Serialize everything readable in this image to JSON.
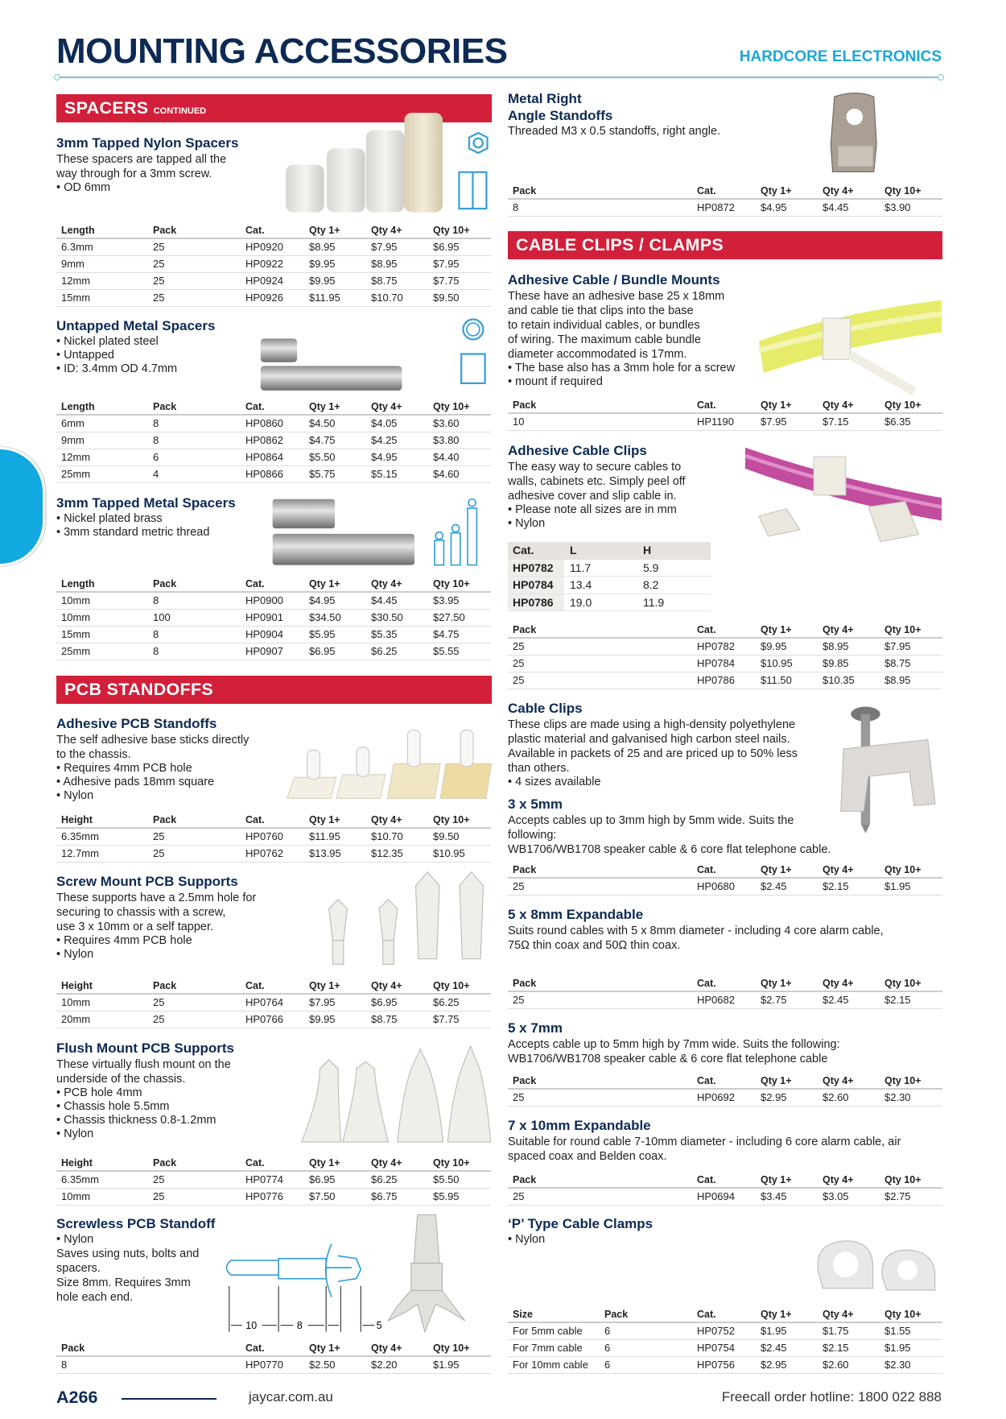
{
  "header": {
    "title": "MOUNTING ACCESSORIES",
    "brand": "HARDCORE ELECTRONICS"
  },
  "banners": {
    "spacers": "SPACERS",
    "spacers_sub": "CONTINUED",
    "pcb": "PCB STANDOFFS",
    "cable": "CABLE CLIPS / CLAMPS"
  },
  "colors": {
    "navy": "#0d2a55",
    "red_banner": "#d21f3a",
    "cyan": "#1ba8d8"
  },
  "left_sections": [
    {
      "id": "nylon",
      "heading": [
        "3mm Tapped Nylon Spacers"
      ],
      "desc": [
        "These spacers are tapped all the",
        "way through for a 3mm screw."
      ],
      "bullets": [
        "OD 6mm"
      ],
      "table": {
        "headers": [
          "Length",
          "Pack",
          "Cat.",
          "Qty 1+",
          "Qty 4+",
          "Qty 10+"
        ],
        "rows": [
          [
            "6.3mm",
            "25",
            "HP0920",
            "$8.95",
            "$7.95",
            "$6.95"
          ],
          [
            "9mm",
            "25",
            "HP0922",
            "$9.95",
            "$8.95",
            "$7.95"
          ],
          [
            "12mm",
            "25",
            "HP0924",
            "$9.95",
            "$8.75",
            "$7.75"
          ],
          [
            "15mm",
            "25",
            "HP0926",
            "$11.95",
            "$10.70",
            "$9.50"
          ]
        ]
      }
    },
    {
      "id": "untapped",
      "heading": [
        "Untapped Metal Spacers"
      ],
      "desc": [],
      "bullets": [
        "Nickel plated steel",
        "Untapped",
        "ID: 3.4mm OD 4.7mm"
      ],
      "table": {
        "headers": [
          "Length",
          "Pack",
          "Cat.",
          "Qty 1+",
          "Qty 4+",
          "Qty 10+"
        ],
        "rows": [
          [
            "6mm",
            "8",
            "HP0860",
            "$4.50",
            "$4.05",
            "$3.60"
          ],
          [
            "9mm",
            "8",
            "HP0862",
            "$4.75",
            "$4.25",
            "$3.80"
          ],
          [
            "12mm",
            "6",
            "HP0864",
            "$5.50",
            "$4.95",
            "$4.40"
          ],
          [
            "25mm",
            "4",
            "HP0866",
            "$5.75",
            "$5.15",
            "$4.60"
          ]
        ]
      }
    },
    {
      "id": "tapped_metal",
      "heading": [
        "3mm Tapped Metal Spacers"
      ],
      "desc": [],
      "bullets": [
        "Nickel plated brass",
        "3mm standard metric thread"
      ],
      "table": {
        "headers": [
          "Length",
          "Pack",
          "Cat.",
          "Qty 1+",
          "Qty 4+",
          "Qty 10+"
        ],
        "rows": [
          [
            "10mm",
            "8",
            "HP0900",
            "$4.95",
            "$4.45",
            "$3.95"
          ],
          [
            "10mm",
            "100",
            "HP0901",
            "$34.50",
            "$30.50",
            "$27.50"
          ],
          [
            "15mm",
            "8",
            "HP0904",
            "$5.95",
            "$5.35",
            "$4.75"
          ],
          [
            "25mm",
            "8",
            "HP0907",
            "$6.95",
            "$6.25",
            "$5.55"
          ]
        ]
      }
    },
    {
      "id": "adhesive_pcb",
      "heading": [
        "Adhesive PCB Standoffs"
      ],
      "desc": [
        "The self adhesive base sticks directly",
        "to the chassis."
      ],
      "bullets": [
        "Requires 4mm PCB hole",
        "Adhesive pads 18mm square",
        "Nylon"
      ],
      "table": {
        "headers": [
          "Height",
          "Pack",
          "Cat.",
          "Qty 1+",
          "Qty 4+",
          "Qty 10+"
        ],
        "rows": [
          [
            "6.35mm",
            "25",
            "HP0760",
            "$11.95",
            "$10.70",
            "$9.50"
          ],
          [
            "12.7mm",
            "25",
            "HP0762",
            "$13.95",
            "$12.35",
            "$10.95"
          ]
        ]
      }
    },
    {
      "id": "screw_mount",
      "heading": [
        "Screw Mount PCB Supports"
      ],
      "desc": [
        "These supports have a 2.5mm hole for",
        "securing to chassis with a screw,",
        "use 3 x 10mm or a self tapper."
      ],
      "bullets": [
        "Requires 4mm PCB hole",
        "Nylon"
      ],
      "table": {
        "headers": [
          "Height",
          "Pack",
          "Cat.",
          "Qty 1+",
          "Qty 4+",
          "Qty 10+"
        ],
        "rows": [
          [
            "10mm",
            "25",
            "HP0764",
            "$7.95",
            "$6.95",
            "$6.25"
          ],
          [
            "20mm",
            "25",
            "HP0766",
            "$9.95",
            "$8.75",
            "$7.75"
          ]
        ]
      }
    },
    {
      "id": "flush",
      "heading": [
        "Flush Mount PCB Supports"
      ],
      "desc": [
        "These virtually flush mount on the",
        "underside of the chassis."
      ],
      "bullets": [
        "PCB hole 4mm",
        "Chassis hole 5.5mm",
        "Chassis thickness 0.8-1.2mm",
        "Nylon"
      ],
      "table": {
        "headers": [
          "Height",
          "Pack",
          "Cat.",
          "Qty 1+",
          "Qty 4+",
          "Qty 10+"
        ],
        "rows": [
          [
            "6.35mm",
            "25",
            "HP0774",
            "$6.95",
            "$6.25",
            "$5.50"
          ],
          [
            "10mm",
            "25",
            "HP0776",
            "$7.50",
            "$6.75",
            "$5.95"
          ]
        ]
      }
    },
    {
      "id": "screwless",
      "heading": [
        "Screwless PCB Standoff"
      ],
      "bullets_first": true,
      "bullets": [
        "Nylon"
      ],
      "desc": [
        "Saves using nuts, bolts and",
        "spacers.",
        "Size 8mm. Requires 3mm",
        "hole each end."
      ],
      "diagram_labels": [
        "10",
        "8",
        "5"
      ],
      "table": {
        "headers": [
          "Pack",
          "Cat.",
          "Qty 1+",
          "Qty 4+",
          "Qty 10+"
        ],
        "rows": [
          [
            "8",
            "HP0770",
            "$2.50",
            "$2.20",
            "$1.95"
          ]
        ]
      }
    }
  ],
  "right_sections": [
    {
      "id": "metal_right",
      "heading": [
        "Metal Right",
        "Angle Standoffs"
      ],
      "desc": [
        "Threaded M3 x 0.5 standoffs, right angle."
      ],
      "bullets": [],
      "table": {
        "headers": [
          "Pack",
          "Cat.",
          "Qty 1+",
          "Qty 4+",
          "Qty 10+"
        ],
        "rows": [
          [
            "8",
            "HP0872",
            "$4.95",
            "$4.45",
            "$3.90"
          ]
        ]
      }
    },
    {
      "id": "adhesive_bundle",
      "heading": [
        "Adhesive Cable / Bundle Mounts"
      ],
      "desc": [
        "These have an adhesive base 25 x 18mm",
        "and cable tie that clips into the base",
        "to retain individual cables, or bundles",
        "of wiring. The maximum cable bundle",
        "diameter accommodated is 17mm."
      ],
      "bullets": [
        "The base also has a 3mm hole for a screw",
        "mount if required"
      ],
      "table": {
        "headers": [
          "Pack",
          "Cat.",
          "Qty 1+",
          "Qty 4+",
          "Qty 10+"
        ],
        "rows": [
          [
            "10",
            "HP1190",
            "$7.95",
            "$7.15",
            "$6.35"
          ]
        ]
      }
    },
    {
      "id": "adhesive_clips",
      "heading": [
        "Adhesive Cable Clips"
      ],
      "desc": [
        "The easy way to secure cables to",
        "walls, cabinets etc. Simply peel off",
        "adhesive cover and slip cable in."
      ],
      "bullets": [
        "Please note all sizes are in mm",
        "Nylon"
      ],
      "dims": {
        "headers": [
          "Cat.",
          "L",
          "H"
        ],
        "rows": [
          [
            "HP0782",
            "11.7",
            "5.9"
          ],
          [
            "HP0784",
            "13.4",
            "8.2"
          ],
          [
            "HP0786",
            "19.0",
            "11.9"
          ]
        ]
      },
      "table": {
        "headers": [
          "Pack",
          "Cat.",
          "Qty 1+",
          "Qty 4+",
          "Qty 10+"
        ],
        "rows": [
          [
            "25",
            "HP0782",
            "$9.95",
            "$8.95",
            "$7.95"
          ],
          [
            "25",
            "HP0784",
            "$10.95",
            "$9.85",
            "$8.75"
          ],
          [
            "25",
            "HP0786",
            "$11.50",
            "$10.35",
            "$8.95"
          ]
        ]
      }
    },
    {
      "id": "cable_clips",
      "heading": [
        "Cable Clips"
      ],
      "desc": [
        "These clips are made using a high-density polyethylene",
        "plastic material and galvanised high carbon steel nails.",
        "Available in packets of 25 and are priced up to 50% less",
        "than others."
      ],
      "bullets": [
        "4 sizes available"
      ]
    },
    {
      "id": "c3x5",
      "heading": [
        "3 x 5mm"
      ],
      "desc": [
        "Accepts cables up to 3mm high by 5mm wide. Suits the",
        "following:",
        "WB1706/WB1708 speaker cable & 6 core flat telephone cable."
      ],
      "bullets": [],
      "table": {
        "headers": [
          "Pack",
          "Cat.",
          "Qty 1+",
          "Qty 4+",
          "Qty 10+"
        ],
        "rows": [
          [
            "25",
            "HP0680",
            "$2.45",
            "$2.15",
            "$1.95"
          ]
        ]
      }
    },
    {
      "id": "c5x8",
      "heading": [
        "5 x 8mm Expandable"
      ],
      "desc": [
        "Suits round cables with 5 x 8mm diameter - including 4 core alarm cable,",
        "75Ω thin coax and 50Ω thin coax."
      ],
      "bullets": [],
      "table": {
        "headers": [
          "Pack",
          "Cat.",
          "Qty 1+",
          "Qty 4+",
          "Qty 10+"
        ],
        "rows": [
          [
            "25",
            "HP0682",
            "$2.75",
            "$2.45",
            "$2.15"
          ]
        ]
      }
    },
    {
      "id": "c5x7",
      "heading": [
        "5 x 7mm"
      ],
      "desc": [
        "Accepts cable up to 5mm high by 7mm wide. Suits the following:",
        "WB1706/WB1708 speaker cable & 6 core flat telephone cable"
      ],
      "bullets": [],
      "table": {
        "headers": [
          "Pack",
          "Cat.",
          "Qty 1+",
          "Qty 4+",
          "Qty 10+"
        ],
        "rows": [
          [
            "25",
            "HP0692",
            "$2.95",
            "$2.60",
            "$2.30"
          ]
        ]
      }
    },
    {
      "id": "c7x10",
      "heading": [
        "7 x 10mm Expandable"
      ],
      "desc": [
        "Suitable for round cable 7-10mm diameter - including 6 core alarm cable, air",
        "spaced coax and Belden coax."
      ],
      "bullets": [],
      "table": {
        "headers": [
          "Pack",
          "Cat.",
          "Qty 1+",
          "Qty 4+",
          "Qty 10+"
        ],
        "rows": [
          [
            "25",
            "HP0694",
            "$3.45",
            "$3.05",
            "$2.75"
          ]
        ]
      }
    },
    {
      "id": "ptype",
      "heading": [
        "‘P’ Type Cable Clamps"
      ],
      "desc": [],
      "bullets": [
        "Nylon"
      ],
      "table": {
        "headers": [
          "Size",
          "Pack",
          "Cat.",
          "Qty 1+",
          "Qty 4+",
          "Qty 10+"
        ],
        "rows": [
          [
            "For 5mm cable",
            "6",
            "HP0752",
            "$1.95",
            "$1.75",
            "$1.55"
          ],
          [
            "For 7mm cable",
            "6",
            "HP0754",
            "$2.45",
            "$2.15",
            "$1.95"
          ],
          [
            "For 10mm cable",
            "6",
            "HP0756",
            "$2.95",
            "$2.60",
            "$2.30"
          ]
        ]
      }
    }
  ],
  "footer": {
    "page": "A266",
    "url": "jaycar.com.au",
    "hotline": "Freecall order hotline: 1800 022 888"
  }
}
